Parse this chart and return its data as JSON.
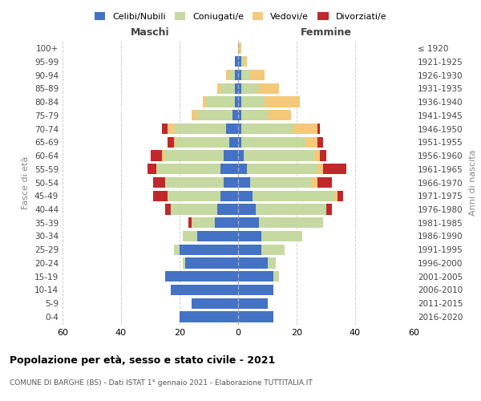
{
  "age_groups": [
    "0-4",
    "5-9",
    "10-14",
    "15-19",
    "20-24",
    "25-29",
    "30-34",
    "35-39",
    "40-44",
    "45-49",
    "50-54",
    "55-59",
    "60-64",
    "65-69",
    "70-74",
    "75-79",
    "80-84",
    "85-89",
    "90-94",
    "95-99",
    "100+"
  ],
  "birth_years": [
    "2016-2020",
    "2011-2015",
    "2006-2010",
    "2001-2005",
    "1996-2000",
    "1991-1995",
    "1986-1990",
    "1981-1985",
    "1976-1980",
    "1971-1975",
    "1966-1970",
    "1961-1965",
    "1956-1960",
    "1951-1955",
    "1946-1950",
    "1941-1945",
    "1936-1940",
    "1931-1935",
    "1926-1930",
    "1921-1925",
    "≤ 1920"
  ],
  "colors": {
    "celibi": "#4472C4",
    "coniugati": "#c5d9a0",
    "vedovi": "#f4c97a",
    "divorziati": "#c0282a"
  },
  "maschi": {
    "celibi": [
      20,
      16,
      23,
      25,
      18,
      20,
      14,
      8,
      7,
      6,
      5,
      6,
      5,
      3,
      4,
      2,
      1,
      1,
      1,
      1,
      0
    ],
    "coniugati": [
      0,
      0,
      0,
      0,
      1,
      2,
      5,
      8,
      16,
      18,
      20,
      22,
      20,
      18,
      18,
      12,
      10,
      5,
      2,
      0,
      0
    ],
    "vedovi": [
      0,
      0,
      0,
      0,
      0,
      0,
      0,
      0,
      0,
      0,
      0,
      0,
      1,
      1,
      2,
      2,
      1,
      1,
      1,
      0,
      0
    ],
    "divorziati": [
      0,
      0,
      0,
      0,
      0,
      0,
      0,
      1,
      2,
      5,
      4,
      3,
      4,
      2,
      2,
      0,
      0,
      0,
      0,
      0,
      0
    ]
  },
  "femmine": {
    "celibi": [
      12,
      10,
      12,
      12,
      10,
      8,
      8,
      7,
      6,
      5,
      4,
      3,
      2,
      1,
      1,
      1,
      1,
      1,
      1,
      1,
      0
    ],
    "coniugati": [
      0,
      0,
      0,
      2,
      3,
      8,
      14,
      22,
      24,
      28,
      21,
      24,
      24,
      22,
      18,
      9,
      8,
      6,
      3,
      1,
      0
    ],
    "vedovi": [
      0,
      0,
      0,
      0,
      0,
      0,
      0,
      0,
      0,
      1,
      2,
      2,
      2,
      4,
      8,
      8,
      12,
      7,
      5,
      1,
      1
    ],
    "divorziati": [
      0,
      0,
      0,
      0,
      0,
      0,
      0,
      0,
      2,
      2,
      5,
      8,
      2,
      2,
      1,
      0,
      0,
      0,
      0,
      0,
      0
    ]
  },
  "xlim": 60,
  "title": "Popolazione per età, sesso e stato civile - 2021",
  "subtitle": "COMUNE DI BARGHE (BS) - Dati ISTAT 1° gennaio 2021 - Elaborazione TUTTITALIA.IT",
  "ylabel": "Fasce di età",
  "ylabel_right": "Anni di nascita",
  "legend_labels": [
    "Celibi/Nubili",
    "Coniugati/e",
    "Vedovi/e",
    "Divorziati/e"
  ]
}
